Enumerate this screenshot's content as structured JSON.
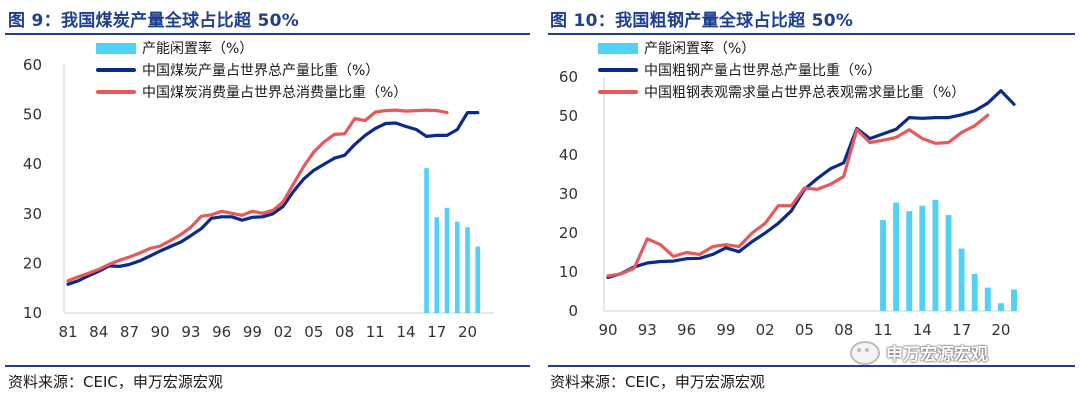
{
  "colors": {
    "title_blue": "#1f3f8f",
    "bar_cyan": "#4fd2f5",
    "line_navy": "#0a2a8c",
    "line_red": "#e8585a"
  },
  "watermark_text": "申万宏源宏观",
  "chart_data": [
    {
      "type": "bar+line",
      "figure_title": "图 9：我国煤炭产量全球占比超 50%",
      "source": "资料来源：CEIC，申万宏源宏观",
      "ylim": [
        10,
        60
      ],
      "y_ticks": [
        10,
        20,
        30,
        40,
        50,
        60
      ],
      "x_range": [
        1981,
        2022
      ],
      "x_ticks": [
        {
          "x": 1981,
          "label": "81"
        },
        {
          "x": 1984,
          "label": "84"
        },
        {
          "x": 1987,
          "label": "87"
        },
        {
          "x": 1990,
          "label": "90"
        },
        {
          "x": 1993,
          "label": "93"
        },
        {
          "x": 1996,
          "label": "96"
        },
        {
          "x": 1999,
          "label": "99"
        },
        {
          "x": 2002,
          "label": "02"
        },
        {
          "x": 2005,
          "label": "05"
        },
        {
          "x": 2008,
          "label": "08"
        },
        {
          "x": 2011,
          "label": "11"
        },
        {
          "x": 2014,
          "label": "14"
        },
        {
          "x": 2017,
          "label": "17"
        },
        {
          "x": 2020,
          "label": "20"
        }
      ],
      "grid": false,
      "legend_position": "top-left",
      "bars": {
        "name": "产能闲置率（%）",
        "x": [
          2016,
          2017,
          2018,
          2019,
          2020,
          2021
        ],
        "values": [
          39.2,
          29.3,
          31.2,
          28.4,
          27.3,
          23.4
        ]
      },
      "series": [
        {
          "name": "中国煤炭产量占世界总产量比重（%）",
          "color_key": "line_navy",
          "x": [
            1981,
            1982,
            1983,
            1984,
            1985,
            1986,
            1987,
            1988,
            1989,
            1990,
            1991,
            1992,
            1993,
            1994,
            1995,
            1996,
            1997,
            1998,
            1999,
            2000,
            2001,
            2002,
            2003,
            2004,
            2005,
            2006,
            2007,
            2008,
            2009,
            2010,
            2011,
            2012,
            2013,
            2014,
            2015,
            2016,
            2017,
            2018,
            2019,
            2020,
            2021
          ],
          "values": [
            15.8,
            16.5,
            17.5,
            18.4,
            19.5,
            19.4,
            19.8,
            20.5,
            21.5,
            22.5,
            23.4,
            24.3,
            25.6,
            27.0,
            29.1,
            29.4,
            29.4,
            28.7,
            29.3,
            29.4,
            30.0,
            31.5,
            34.5,
            37.0,
            38.8,
            40.0,
            41.2,
            41.8,
            44.0,
            45.8,
            47.2,
            48.2,
            48.3,
            47.6,
            47.0,
            45.6,
            45.8,
            45.8,
            47.0,
            50.4,
            50.4
          ]
        },
        {
          "name": "中国煤炭消费量占世界总消费量比重（%）",
          "color_key": "line_red",
          "x": [
            1981,
            1982,
            1983,
            1984,
            1985,
            1986,
            1987,
            1988,
            1989,
            1990,
            1991,
            1992,
            1993,
            1994,
            1995,
            1996,
            1997,
            1998,
            1999,
            2000,
            2001,
            2002,
            2003,
            2004,
            2005,
            2006,
            2007,
            2008,
            2009,
            2010,
            2011,
            2012,
            2013,
            2014,
            2015,
            2016,
            2017,
            2018
          ],
          "values": [
            16.5,
            17.3,
            18.0,
            18.8,
            19.8,
            20.6,
            21.3,
            22.1,
            23.0,
            23.5,
            24.6,
            25.8,
            27.3,
            29.5,
            29.8,
            30.5,
            30.1,
            29.7,
            30.5,
            30.1,
            30.7,
            32.4,
            36.0,
            39.5,
            42.5,
            44.5,
            46.0,
            46.1,
            49.2,
            48.8,
            50.5,
            50.8,
            50.9,
            50.7,
            50.8,
            50.9,
            50.8,
            50.4
          ]
        }
      ]
    },
    {
      "type": "bar+line",
      "figure_title": "图 10：我国粗钢产量全球占比超 50%",
      "source": "资料来源：CEIC，申万宏源宏观",
      "ylim": [
        0,
        60
      ],
      "y_ticks": [
        0,
        10,
        20,
        30,
        40,
        50,
        60
      ],
      "x_range": [
        1990,
        2021
      ],
      "x_ticks": [
        {
          "x": 1990,
          "label": "90"
        },
        {
          "x": 1993,
          "label": "93"
        },
        {
          "x": 1996,
          "label": "96"
        },
        {
          "x": 1999,
          "label": "99"
        },
        {
          "x": 2002,
          "label": "02"
        },
        {
          "x": 2005,
          "label": "05"
        },
        {
          "x": 2008,
          "label": "08"
        },
        {
          "x": 2011,
          "label": "11"
        },
        {
          "x": 2014,
          "label": "14"
        },
        {
          "x": 2017,
          "label": "17"
        },
        {
          "x": 2020,
          "label": "20"
        }
      ],
      "grid": false,
      "legend_position": "top-left",
      "bars": {
        "name": "产能闲置率（%）",
        "x": [
          2011,
          2012,
          2013,
          2014,
          2015,
          2016,
          2017,
          2018,
          2019,
          2020,
          2021
        ],
        "values": [
          23.3,
          27.8,
          25.6,
          27.0,
          28.5,
          24.6,
          16.0,
          9.5,
          6.0,
          2.0,
          5.5
        ]
      },
      "series": [
        {
          "name": "中国粗钢产量占世界总产量比重（%）",
          "color_key": "line_navy",
          "x": [
            1990,
            1991,
            1992,
            1993,
            1994,
            1995,
            1996,
            1997,
            1998,
            1999,
            2000,
            2001,
            2002,
            2003,
            2004,
            2005,
            2006,
            2007,
            2008,
            2009,
            2010,
            2011,
            2012,
            2013,
            2014,
            2015,
            2016,
            2017,
            2018,
            2019,
            2020,
            2021
          ],
          "values": [
            8.6,
            9.6,
            11.3,
            12.3,
            12.7,
            12.8,
            13.4,
            13.5,
            14.5,
            16.2,
            15.2,
            17.8,
            20.0,
            22.5,
            25.7,
            31.2,
            34.0,
            36.5,
            38.0,
            46.8,
            44.2,
            45.4,
            46.6,
            49.6,
            49.4,
            49.6,
            49.6,
            50.3,
            51.3,
            53.3,
            56.5,
            53.0
          ]
        },
        {
          "name": "中国粗钢表观需求量占世界总表观需求量比重（%）",
          "color_key": "line_red",
          "x": [
            1990,
            1991,
            1992,
            1993,
            1994,
            1995,
            1996,
            1997,
            1998,
            1999,
            2000,
            2001,
            2002,
            2003,
            2004,
            2005,
            2006,
            2007,
            2008,
            2009,
            2010,
            2011,
            2012,
            2013,
            2014,
            2015,
            2016,
            2017,
            2018,
            2019
          ],
          "values": [
            9.0,
            9.5,
            11.0,
            18.5,
            17.0,
            14.0,
            15.0,
            14.5,
            16.5,
            17.0,
            16.5,
            20.0,
            22.5,
            27.0,
            27.0,
            31.5,
            31.2,
            32.5,
            34.5,
            46.5,
            43.2,
            43.8,
            44.5,
            46.5,
            44.2,
            43.0,
            43.2,
            45.8,
            47.5,
            50.2
          ]
        }
      ]
    }
  ]
}
